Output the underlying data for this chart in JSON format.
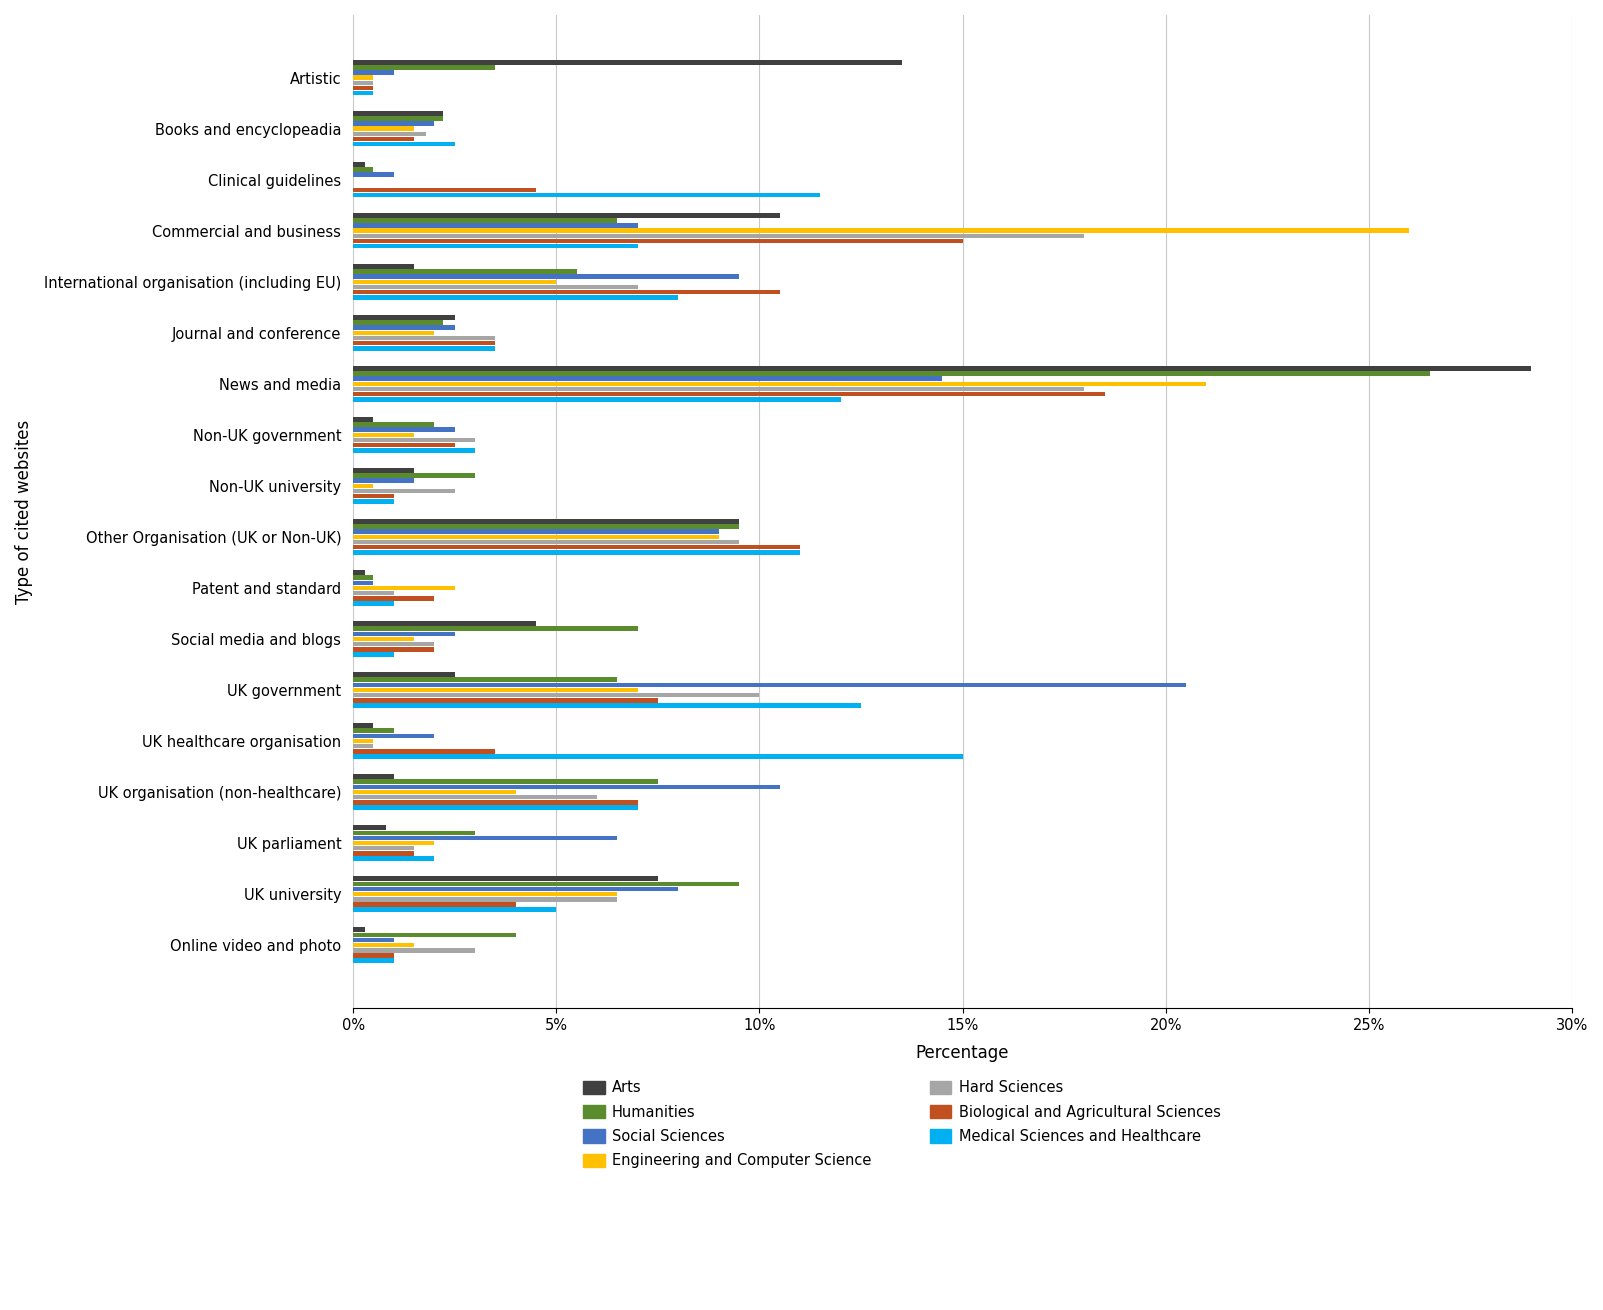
{
  "categories": [
    "Artistic",
    "Books and encyclopeadia",
    "Clinical guidelines",
    "Commercial and business",
    "International organisation (including EU)",
    "Journal and conference",
    "News and media",
    "Non-UK government",
    "Non-UK university",
    "Other Organisation (UK or Non-UK)",
    "Patent and standard",
    "Social media and blogs",
    "UK government",
    "UK healthcare organisation",
    "UK organisation (non-healthcare)",
    "UK parliament",
    "UK university",
    "Online video and photo"
  ],
  "series_names": [
    "Arts",
    "Humanities",
    "Social Sciences",
    "Engineering and Computer Science",
    "Hard Sciences",
    "Biological and Agricultural Sciences",
    "Medical Sciences and Healthcare"
  ],
  "series_colors": [
    "#404040",
    "#5a8c2d",
    "#4472c4",
    "#ffc000",
    "#a6a6a6",
    "#c05020",
    "#00b0f0"
  ],
  "data": {
    "Arts": [
      13.5,
      2.2,
      0.3,
      10.5,
      1.5,
      2.5,
      29.0,
      0.5,
      1.5,
      9.5,
      0.3,
      4.5,
      2.5,
      0.5,
      1.0,
      0.8,
      7.5,
      0.3
    ],
    "Humanities": [
      3.5,
      2.2,
      0.5,
      6.5,
      5.5,
      2.2,
      26.5,
      2.0,
      3.0,
      9.5,
      0.5,
      7.0,
      6.5,
      1.0,
      7.5,
      3.0,
      9.5,
      4.0
    ],
    "Social Sciences": [
      1.0,
      2.0,
      1.0,
      7.0,
      9.5,
      2.5,
      14.5,
      2.5,
      1.5,
      9.0,
      0.5,
      2.5,
      20.5,
      2.0,
      10.5,
      6.5,
      8.0,
      1.0
    ],
    "Engineering and Computer Science": [
      0.5,
      1.5,
      0.0,
      26.0,
      5.0,
      2.0,
      21.0,
      1.5,
      0.5,
      9.0,
      2.5,
      1.5,
      7.0,
      0.5,
      4.0,
      2.0,
      6.5,
      1.5
    ],
    "Hard Sciences": [
      0.5,
      1.8,
      0.0,
      18.0,
      7.0,
      3.5,
      18.0,
      3.0,
      2.5,
      9.5,
      1.0,
      2.0,
      10.0,
      0.5,
      6.0,
      1.5,
      6.5,
      3.0
    ],
    "Biological and Agricultural Sciences": [
      0.5,
      1.5,
      4.5,
      15.0,
      10.5,
      3.5,
      18.5,
      2.5,
      1.0,
      11.0,
      2.0,
      2.0,
      7.5,
      3.5,
      7.0,
      1.5,
      4.0,
      1.0
    ],
    "Medical Sciences and Healthcare": [
      0.5,
      2.5,
      11.5,
      7.0,
      8.0,
      3.5,
      12.0,
      3.0,
      1.0,
      11.0,
      1.0,
      1.0,
      12.5,
      15.0,
      7.0,
      2.0,
      5.0,
      1.0
    ]
  },
  "xlabel": "Percentage",
  "ylabel": "Type of cited websites",
  "xlim": [
    0,
    30
  ],
  "xtick_labels": [
    "0%",
    "5%",
    "10%",
    "15%",
    "20%",
    "25%",
    "30%"
  ],
  "xtick_values": [
    0,
    5,
    10,
    15,
    20,
    25,
    30
  ]
}
